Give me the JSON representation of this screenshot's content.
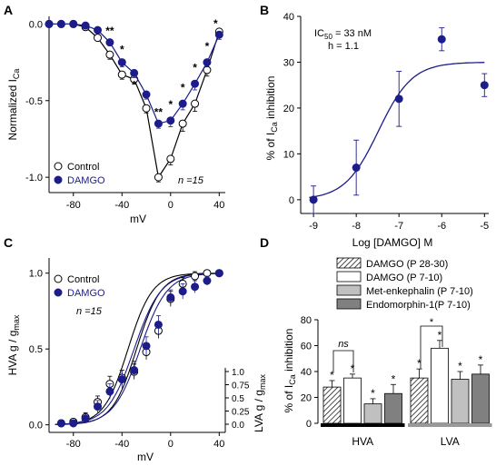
{
  "chart_data": [
    {
      "panel": "A",
      "type": "line",
      "ylabel_main": "Normalized I",
      "ylabel_sub": "Ca",
      "xlabel": "mV",
      "xlim": [
        -100,
        45
      ],
      "ylim": [
        -1.1,
        0.05
      ],
      "xticks": [
        -80,
        -40,
        0,
        40
      ],
      "xtick_labels": [
        "-80",
        "-40",
        "0",
        "40"
      ],
      "yticks": [
        0,
        -0.5,
        -1.0
      ],
      "ytick_labels": [
        "0.0",
        "-0.5",
        "-1.0"
      ],
      "n_label": "n =15",
      "legend": [
        "Control",
        "DAMGO"
      ],
      "series": [
        {
          "name": "Control",
          "marker": "open-circle",
          "color": "#ffffff",
          "x": [
            -100,
            -90,
            -80,
            -70,
            -60,
            -50,
            -40,
            -30,
            -20,
            -10,
            0,
            10,
            20,
            30,
            40
          ],
          "y": [
            0.0,
            0.0,
            0.0,
            -0.02,
            -0.09,
            -0.2,
            -0.33,
            -0.36,
            -0.55,
            -1.0,
            -0.88,
            -0.65,
            -0.52,
            -0.3,
            -0.05
          ],
          "err": [
            0,
            0,
            0,
            0.02,
            0.02,
            0.03,
            0.03,
            0.03,
            0.03,
            0.03,
            0.04,
            0.05,
            0.05,
            0.04,
            0.03
          ]
        },
        {
          "name": "DAMGO",
          "marker": "filled-circle",
          "color": "#1c1c8a",
          "x": [
            -100,
            -90,
            -80,
            -70,
            -60,
            -50,
            -40,
            -30,
            -20,
            -10,
            0,
            10,
            20,
            30,
            40
          ],
          "y": [
            0.0,
            0.0,
            0.0,
            -0.01,
            -0.04,
            -0.12,
            -0.25,
            -0.32,
            -0.46,
            -0.65,
            -0.63,
            -0.52,
            -0.39,
            -0.25,
            -0.07
          ],
          "err": [
            0,
            0,
            0,
            0.01,
            0.02,
            0.02,
            0.03,
            0.03,
            0.03,
            0.03,
            0.04,
            0.04,
            0.04,
            0.03,
            0.03
          ]
        }
      ],
      "annotations": [
        {
          "text": "**",
          "x": -50,
          "y": -0.07
        },
        {
          "text": "*",
          "x": -40,
          "y": -0.19
        },
        {
          "text": "*",
          "x": -30,
          "y": -0.42
        },
        {
          "text": "**",
          "x": -10,
          "y": -0.6
        },
        {
          "text": "*",
          "x": 0,
          "y": -0.55
        },
        {
          "text": "*",
          "x": 10,
          "y": -0.44
        },
        {
          "text": "*",
          "x": 20,
          "y": -0.31
        },
        {
          "text": "*",
          "x": 30,
          "y": -0.17
        },
        {
          "text": "*",
          "x": 37,
          "y": -0.02
        }
      ]
    },
    {
      "panel": "B",
      "type": "scatter",
      "ylabel_main": "% of I",
      "ylabel_sub": "Ca",
      "ylabel_tail": " inhibition",
      "xlabel": "Log [DAMGO] M",
      "xlim": [
        -9.3,
        -4.9
      ],
      "ylim": [
        -3,
        40
      ],
      "xticks": [
        -9,
        -8,
        -7,
        -6,
        -5
      ],
      "xtick_labels": [
        "-9",
        "-8",
        "-7",
        "-6",
        "-5"
      ],
      "yticks": [
        0,
        10,
        20,
        30,
        40
      ],
      "ytick_labels": [
        "0",
        "10",
        "20",
        "30",
        "40"
      ],
      "ic50_main": "IC",
      "ic50_sub": "50",
      "ic50_tail": " = 33 nM",
      "hill": "h = 1.1",
      "fit": {
        "bottom": 0,
        "top": 30,
        "log_ic50": -7.48,
        "hill": 1.1
      },
      "x": [
        -9,
        -8,
        -7,
        -6,
        -5
      ],
      "y": [
        0,
        7,
        22,
        35,
        25
      ],
      "err": [
        3,
        6,
        6,
        2.5,
        2.5
      ]
    },
    {
      "panel": "C",
      "type": "line",
      "ylabel_left_main": "HVA g / g",
      "ylabel_left_sub": "max",
      "ylabel_right_main": "LVA g / g",
      "ylabel_right_sub": "max",
      "xlabel": "mV",
      "xlim": [
        -100,
        45
      ],
      "ylim": [
        -0.05,
        1.1
      ],
      "xticks": [
        -80,
        -40,
        0,
        40
      ],
      "xtick_labels": [
        "-80",
        "-40",
        "0",
        "40"
      ],
      "yticks": [
        0,
        0.5,
        1.0
      ],
      "ytick_labels": [
        "0.0",
        "0.5",
        "1.0"
      ],
      "yticks_right": [
        0,
        0.25,
        0.5,
        0.75,
        1.0
      ],
      "ytick_labels_right": [
        "0.0",
        "0.25",
        "0.5",
        "0.75",
        "1.0"
      ],
      "n_label": "n =15",
      "legend": [
        "Control",
        "DAMGO"
      ],
      "series": [
        {
          "name": "Control",
          "marker": "open-circle",
          "color": "#ffffff",
          "x": [
            -90,
            -80,
            -70,
            -60,
            -50,
            -40,
            -30,
            -20,
            -10,
            0,
            10,
            20,
            30,
            40
          ],
          "y": [
            0.01,
            0.02,
            0.05,
            0.15,
            0.27,
            0.31,
            0.35,
            0.48,
            0.62,
            0.83,
            0.93,
            0.98,
            1.0,
            1.0
          ],
          "err": [
            0.02,
            0.02,
            0.03,
            0.04,
            0.05,
            0.05,
            0.05,
            0.05,
            0.05,
            0.05,
            0.04,
            0.03,
            0.02,
            0.02
          ]
        },
        {
          "name": "DAMGO",
          "marker": "filled-circle",
          "color": "#1c1c8a",
          "x": [
            -90,
            -80,
            -70,
            -60,
            -50,
            -40,
            -30,
            -20,
            -10,
            0,
            10,
            20,
            30,
            40
          ],
          "y": [
            0.01,
            0.01,
            0.04,
            0.12,
            0.22,
            0.3,
            0.36,
            0.52,
            0.66,
            0.84,
            0.88,
            0.91,
            0.95,
            1.0
          ],
          "err": [
            0.02,
            0.02,
            0.03,
            0.04,
            0.05,
            0.06,
            0.06,
            0.06,
            0.06,
            0.05,
            0.05,
            0.04,
            0.03,
            0.02
          ]
        }
      ],
      "fits": [
        {
          "v50": -35,
          "k": 10,
          "color": "#000000",
          "right_axis": false
        },
        {
          "v50": -28,
          "k": 10,
          "color": "#000000",
          "right_axis": true
        },
        {
          "v50": -30,
          "k": 11,
          "color": "#1c1c8a",
          "right_axis": false
        },
        {
          "v50": -25,
          "k": 11,
          "color": "#1c1c8a",
          "right_axis": true
        }
      ]
    },
    {
      "panel": "D",
      "type": "bar",
      "ylabel_main": "% of I",
      "ylabel_sub": "Ca",
      "ylabel_tail": " inhibition",
      "ylim": [
        0,
        80
      ],
      "yticks": [
        0,
        20,
        40,
        60,
        80
      ],
      "ytick_labels": [
        "0",
        "20",
        "40",
        "60",
        "80"
      ],
      "categories": [
        "HVA",
        "LVA"
      ],
      "series": [
        {
          "name": "DAMGO (P 28-30)",
          "fill": "hatch",
          "values": [
            28,
            35
          ],
          "err": [
            5,
            7
          ]
        },
        {
          "name": "DAMGO (P 7-10)",
          "fill": "#ffffff",
          "values": [
            35,
            58
          ],
          "err": [
            3,
            6
          ]
        },
        {
          "name": "Met-enkephalin (P 7-10)",
          "fill": "#c0c0c0",
          "values": [
            15,
            34
          ],
          "err": [
            4,
            6
          ]
        },
        {
          "name": "Endomorphin-1(P 7-10)",
          "fill": "#808080",
          "values": [
            23,
            38
          ],
          "err": [
            7,
            7
          ]
        }
      ],
      "significance_mark": "*",
      "comparison_labels": [
        "ns",
        "*"
      ],
      "group_bar_colors": [
        "#000000",
        "#999999"
      ]
    }
  ],
  "panel_labels": [
    "A",
    "B",
    "C",
    "D"
  ]
}
